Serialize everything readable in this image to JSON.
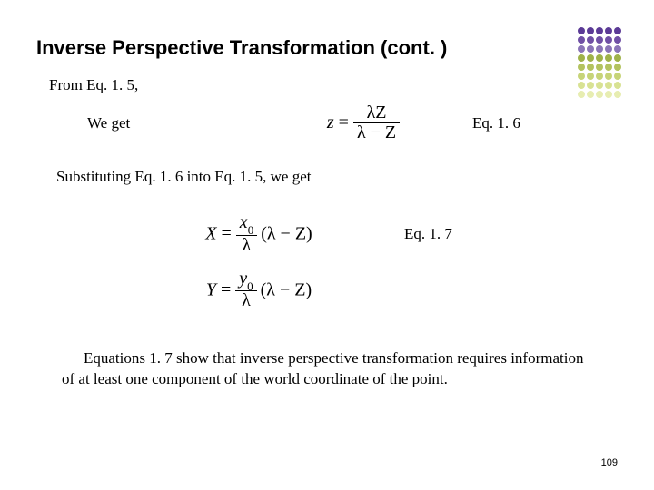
{
  "title": "Inverse Perspective Transformation (cont. )",
  "line_from": "From Eq. 1. 5,",
  "we_get": "We get",
  "eq16_tag": "Eq. 1. 6",
  "substituting": "Substituting Eq. 1. 6 into Eq. 1. 5, we get",
  "eq17_tag": "Eq. 1. 7",
  "conclusion": "Equations 1. 7 show that inverse perspective transformation requires information of at least one component of the world coordinate of the point.",
  "page_number": "109",
  "formulas": {
    "eq16": {
      "lhs": "z",
      "num": "λZ",
      "den": "λ − Z"
    },
    "eq17a": {
      "lhs": "X",
      "frac_num": "x",
      "frac_num_sub": "0",
      "frac_den": "λ",
      "tail": "(λ − Z)"
    },
    "eq17b": {
      "lhs": "Y",
      "frac_num": "y",
      "frac_num_sub": "0",
      "frac_den": "λ",
      "tail": "(λ − Z)"
    }
  },
  "style": {
    "title_font": "Arial",
    "title_size_pt": 22,
    "title_weight": "bold",
    "body_font": "Times New Roman",
    "body_size_pt": 17,
    "formula_size_pt": 20,
    "pagenum_size_pt": 11,
    "text_color": "#000000",
    "background_color": "#ffffff"
  },
  "deco": {
    "cols": 5,
    "rows": 8,
    "radius": 4,
    "gap": 10,
    "colors": [
      "#5b3a96",
      "#5b3a96",
      "#5b3a96",
      "#5b3a96",
      "#5b3a96",
      "#6f4fa5",
      "#6f4fa5",
      "#6f4fa5",
      "#6f4fa5",
      "#6f4fa5",
      "#8a74b7",
      "#8a74b7",
      "#8a74b7",
      "#8a74b7",
      "#8a74b7",
      "#9fb24a",
      "#9fb24a",
      "#9fb24a",
      "#9fb24a",
      "#9fb24a",
      "#b3c35f",
      "#b3c35f",
      "#b3c35f",
      "#b3c35f",
      "#b3c35f",
      "#c7d478",
      "#c7d478",
      "#c7d478",
      "#c7d478",
      "#c7d478",
      "#d8e293",
      "#d8e293",
      "#d8e293",
      "#d8e293",
      "#d8e293",
      "#e7edb1",
      "#e7edb1",
      "#e7edb1",
      "#e7edb1",
      "#e7edb1"
    ]
  }
}
